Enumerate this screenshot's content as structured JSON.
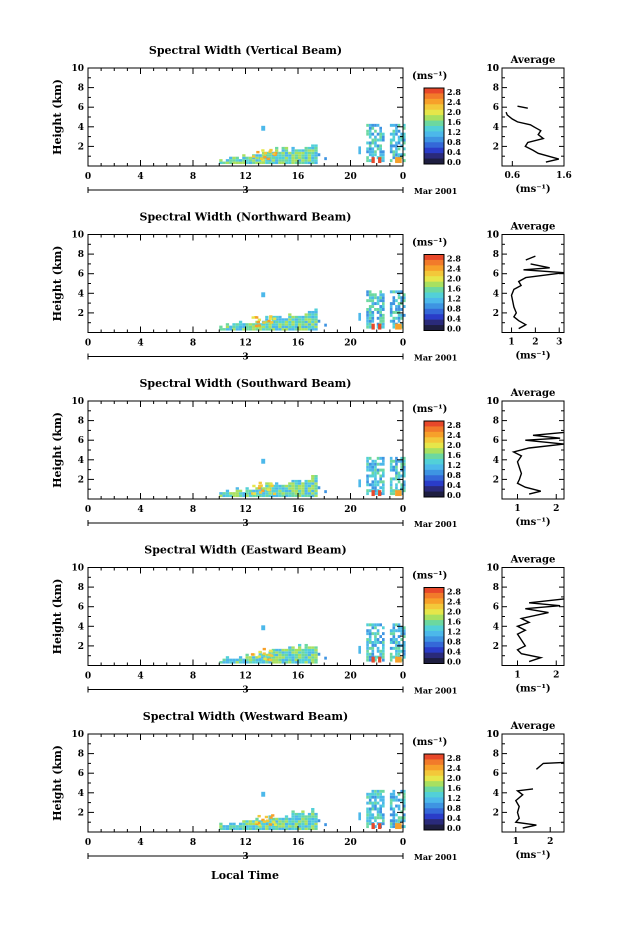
{
  "figure": {
    "xlabel_bottom": "Local Time",
    "date_label": "Mar 2001",
    "day_label": "3",
    "colorbar_unit": "(ms⁻¹)",
    "average_title": "Average",
    "average_unit": "(ms⁻¹)"
  },
  "colorbar": {
    "ticks": [
      "2.8",
      "2.4",
      "2.0",
      "1.6",
      "1.2",
      "0.8",
      "0.4",
      "0.0"
    ],
    "colors": [
      "#e8482a",
      "#f27a2a",
      "#f7a02a",
      "#f3c83a",
      "#e6e64a",
      "#a8e060",
      "#6cd8a0",
      "#52d0d8",
      "#4cb8ea",
      "#3e94e2",
      "#3468d8",
      "#2a3cc8",
      "#2a2a7a",
      "#1e1e40"
    ]
  },
  "chart_data": [
    {
      "type": "heatmap",
      "title": "Spectral Width (Vertical Beam)",
      "ylabel": "Height (km)",
      "x_ticks": [
        "0",
        "4",
        "8",
        "12",
        "16",
        "20",
        "0"
      ],
      "y_ticks": [
        "2",
        "4",
        "6",
        "8",
        "10"
      ],
      "xlim": [
        0,
        24
      ],
      "ylim": [
        0,
        10
      ],
      "avg_x_ticks": [
        "0.6",
        "1.6"
      ],
      "avg_xlim": [
        0.4,
        1.6
      ],
      "avg_profile": [
        [
          1.25,
          0.4
        ],
        [
          1.5,
          0.7
        ],
        [
          1.3,
          1.0
        ],
        [
          1.1,
          1.3
        ],
        [
          1.0,
          1.6
        ],
        [
          0.85,
          2.0
        ],
        [
          0.9,
          2.4
        ],
        [
          1.2,
          2.8
        ],
        [
          1.1,
          3.2
        ],
        [
          1.15,
          3.6
        ],
        [
          1.05,
          3.9
        ],
        [
          0.95,
          4.2
        ],
        [
          0.7,
          4.5
        ],
        [
          0.6,
          4.8
        ],
        [
          0.5,
          5.2
        ],
        [
          0.48,
          5.5
        ]
      ],
      "avg_segment2": [
        [
          0.9,
          5.9
        ],
        [
          0.7,
          6.1
        ]
      ]
    },
    {
      "type": "heatmap",
      "title": "Spectral Width (Northward Beam)",
      "ylabel": "Height (km)",
      "x_ticks": [
        "0",
        "4",
        "8",
        "12",
        "16",
        "20",
        "0"
      ],
      "y_ticks": [
        "2",
        "4",
        "6",
        "8",
        "10"
      ],
      "xlim": [
        0,
        24
      ],
      "ylim": [
        0,
        10
      ],
      "avg_x_ticks": [
        "1",
        "2",
        "3"
      ],
      "avg_xlim": [
        0.6,
        3.2
      ],
      "avg_profile": [
        [
          1.3,
          0.4
        ],
        [
          1.6,
          0.8
        ],
        [
          1.3,
          1.2
        ],
        [
          1.1,
          1.6
        ],
        [
          1.2,
          2.0
        ],
        [
          1.1,
          2.6
        ],
        [
          1.05,
          3.2
        ],
        [
          1.0,
          3.8
        ],
        [
          1.1,
          4.4
        ],
        [
          1.4,
          4.8
        ],
        [
          1.3,
          5.2
        ],
        [
          1.6,
          5.6
        ],
        [
          3.2,
          6.1
        ],
        [
          1.5,
          6.4
        ],
        [
          2.6,
          6.6
        ],
        [
          1.8,
          7.0
        ]
      ],
      "avg_segment2": [
        [
          1.6,
          7.4
        ],
        [
          2.0,
          7.8
        ]
      ]
    },
    {
      "type": "heatmap",
      "title": "Spectral Width (Southward Beam)",
      "ylabel": "Height (km)",
      "x_ticks": [
        "0",
        "4",
        "8",
        "12",
        "16",
        "20",
        "0"
      ],
      "y_ticks": [
        "2",
        "4",
        "6",
        "8",
        "10"
      ],
      "xlim": [
        0,
        24
      ],
      "ylim": [
        0,
        10
      ],
      "avg_x_ticks": [
        "1",
        "2"
      ],
      "avg_xlim": [
        0.6,
        2.2
      ],
      "avg_profile": [
        [
          1.3,
          0.5
        ],
        [
          1.6,
          0.8
        ],
        [
          1.2,
          1.2
        ],
        [
          1.0,
          1.6
        ],
        [
          1.05,
          2.0
        ],
        [
          1.1,
          2.6
        ],
        [
          1.05,
          3.2
        ],
        [
          1.0,
          3.8
        ],
        [
          1.1,
          4.4
        ],
        [
          0.9,
          4.8
        ],
        [
          1.3,
          5.2
        ],
        [
          2.2,
          5.6
        ],
        [
          1.2,
          6.0
        ],
        [
          2.1,
          6.2
        ],
        [
          1.4,
          6.5
        ],
        [
          2.2,
          6.8
        ]
      ],
      "avg_segment2": []
    },
    {
      "type": "heatmap",
      "title": "Spectral Width (Eastward Beam)",
      "ylabel": "Height (km)",
      "x_ticks": [
        "0",
        "4",
        "8",
        "12",
        "16",
        "20",
        "0"
      ],
      "y_ticks": [
        "2",
        "4",
        "6",
        "8",
        "10"
      ],
      "xlim": [
        0,
        24
      ],
      "ylim": [
        0,
        10
      ],
      "avg_x_ticks": [
        "1",
        "2"
      ],
      "avg_xlim": [
        0.6,
        2.2
      ],
      "avg_profile": [
        [
          1.3,
          0.4
        ],
        [
          1.6,
          0.8
        ],
        [
          1.1,
          1.2
        ],
        [
          1.0,
          1.6
        ],
        [
          1.2,
          2.0
        ],
        [
          1.1,
          2.6
        ],
        [
          1.0,
          3.2
        ],
        [
          1.2,
          3.6
        ],
        [
          1.0,
          4.0
        ],
        [
          1.3,
          4.4
        ],
        [
          1.1,
          4.8
        ],
        [
          1.8,
          5.4
        ],
        [
          1.2,
          5.8
        ],
        [
          2.1,
          6.1
        ],
        [
          1.3,
          6.4
        ],
        [
          2.2,
          6.8
        ]
      ],
      "avg_segment2": []
    },
    {
      "type": "heatmap",
      "title": "Spectral Width (Westward Beam)",
      "ylabel": "Height (km)",
      "x_ticks": [
        "0",
        "4",
        "8",
        "12",
        "16",
        "20",
        "0"
      ],
      "y_ticks": [
        "2",
        "4",
        "6",
        "8",
        "10"
      ],
      "xlim": [
        0,
        24
      ],
      "ylim": [
        0,
        10
      ],
      "avg_x_ticks": [
        "1",
        "2"
      ],
      "avg_xlim": [
        0.6,
        2.4
      ],
      "avg_profile": [
        [
          1.2,
          0.4
        ],
        [
          1.6,
          0.7
        ],
        [
          1.0,
          1.0
        ],
        [
          1.1,
          1.4
        ],
        [
          1.05,
          2.0
        ],
        [
          1.1,
          2.6
        ],
        [
          1.0,
          3.2
        ],
        [
          1.2,
          3.8
        ],
        [
          1.05,
          4.2
        ],
        [
          1.5,
          4.4
        ]
      ],
      "avg_segment2": [
        [
          1.6,
          6.4
        ],
        [
          1.8,
          7.0
        ],
        [
          2.4,
          7.1
        ]
      ]
    }
  ]
}
